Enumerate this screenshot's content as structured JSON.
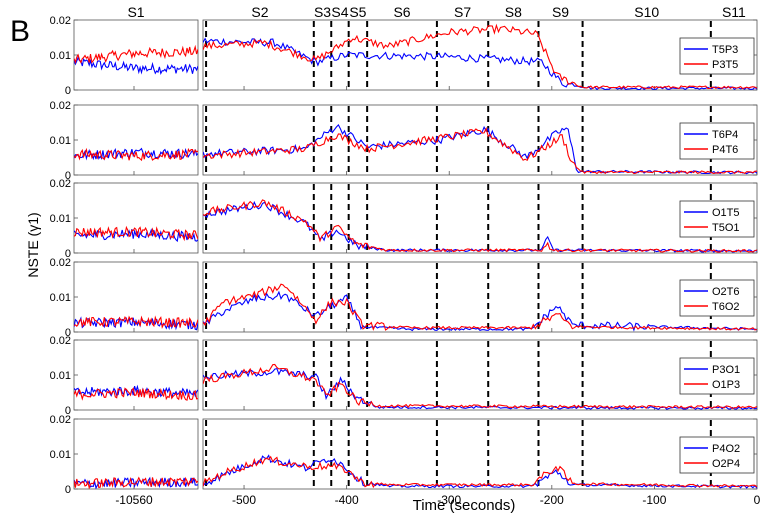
{
  "chart_data": {
    "type": "line",
    "panel_label": "B",
    "ylabel": "NSTE (γ1)",
    "xlabel": "Time (seconds)",
    "segments_top": [
      "S1",
      "S2",
      "S3",
      "S4",
      "S5",
      "S6",
      "S7",
      "S8",
      "S9",
      "S10",
      "S11"
    ],
    "left_axis": {
      "xlim": [
        -10605,
        -10512
      ],
      "xticks": [
        -10560
      ],
      "xtick_labels": [
        "-10560"
      ]
    },
    "right_axis": {
      "xlim": [
        -540,
        0
      ],
      "xticks": [
        -500,
        -400,
        -300,
        -200,
        -100,
        0
      ],
      "xtick_labels": [
        "-500",
        "-400",
        "-300",
        "-200",
        "-100",
        "0"
      ]
    },
    "ylim": [
      0,
      0.02
    ],
    "yticks": [
      0,
      0.01,
      0.02
    ],
    "ytick_labels": [
      "0",
      "0.01",
      "0.02"
    ],
    "phase_boundaries": [
      -537,
      -432,
      -415,
      -398,
      -380,
      -312,
      -262,
      -213,
      -170,
      -45
    ],
    "colors": {
      "series1": "#0000ff",
      "series2": "#ff0000"
    },
    "panels": [
      {
        "legend": [
          "T5P3",
          "P3T5"
        ],
        "s1_a": [
          0.008,
          0.0062,
          0.006
        ],
        "s1_b": [
          0.0085,
          0.0105,
          0.011
        ],
        "a_keys": [
          [
            -540,
            0.014
          ],
          [
            -470,
            0.0135
          ],
          [
            -430,
            0.008
          ],
          [
            -400,
            0.01
          ],
          [
            -300,
            0.0095
          ],
          [
            -210,
            0.008
          ],
          [
            -190,
            0.002
          ],
          [
            -160,
            0.0005
          ],
          [
            0,
            0.0005
          ]
        ],
        "b_keys": [
          [
            -540,
            0.0125
          ],
          [
            -480,
            0.0135
          ],
          [
            -430,
            0.0085
          ],
          [
            -410,
            0.012
          ],
          [
            -395,
            0.015
          ],
          [
            -360,
            0.0125
          ],
          [
            -330,
            0.0145
          ],
          [
            -300,
            0.0165
          ],
          [
            -250,
            0.0175
          ],
          [
            -215,
            0.016
          ],
          [
            -195,
            0.004
          ],
          [
            -170,
            0.0008
          ],
          [
            0,
            0.0008
          ]
        ]
      },
      {
        "legend": [
          "T6P4",
          "P4T6"
        ],
        "s1_a": [
          0.0055,
          0.0065,
          0.006
        ],
        "s1_b": [
          0.006,
          0.0055,
          0.006
        ],
        "a_keys": [
          [
            -540,
            0.006
          ],
          [
            -440,
            0.0075
          ],
          [
            -410,
            0.014
          ],
          [
            -380,
            0.008
          ],
          [
            -310,
            0.01
          ],
          [
            -265,
            0.013
          ],
          [
            -225,
            0.005
          ],
          [
            -195,
            0.012
          ],
          [
            -185,
            0.0135
          ],
          [
            -175,
            0.001
          ],
          [
            0,
            0.0007
          ]
        ],
        "b_keys": [
          [
            -540,
            0.0055
          ],
          [
            -440,
            0.0075
          ],
          [
            -410,
            0.0115
          ],
          [
            -380,
            0.0075
          ],
          [
            -310,
            0.0105
          ],
          [
            -265,
            0.0125
          ],
          [
            -225,
            0.0045
          ],
          [
            -190,
            0.011
          ],
          [
            -180,
            0.0035
          ],
          [
            -170,
            0.0008
          ],
          [
            0,
            0.0008
          ]
        ]
      },
      {
        "legend": [
          "O1T5",
          "T5O1"
        ],
        "s1_a": [
          0.005,
          0.0055,
          0.0045
        ],
        "s1_b": [
          0.006,
          0.006,
          0.005
        ],
        "a_keys": [
          [
            -540,
            0.011
          ],
          [
            -480,
            0.014
          ],
          [
            -440,
            0.0085
          ],
          [
            -425,
            0.0035
          ],
          [
            -410,
            0.0065
          ],
          [
            -390,
            0.002
          ],
          [
            -360,
            0.0008
          ],
          [
            -210,
            0.0008
          ],
          [
            -205,
            0.004
          ],
          [
            -198,
            0.0008
          ],
          [
            0,
            0.0006
          ]
        ],
        "b_keys": [
          [
            -540,
            0.0115
          ],
          [
            -480,
            0.0145
          ],
          [
            -440,
            0.009
          ],
          [
            -425,
            0.004
          ],
          [
            -410,
            0.0075
          ],
          [
            -390,
            0.0025
          ],
          [
            -360,
            0.0008
          ],
          [
            -210,
            0.0008
          ],
          [
            -205,
            0.0025
          ],
          [
            -198,
            0.0008
          ],
          [
            0,
            0.0006
          ]
        ]
      },
      {
        "legend": [
          "O2T6",
          "T6O2"
        ],
        "s1_a": [
          0.0025,
          0.0028,
          0.002
        ],
        "s1_b": [
          0.0028,
          0.003,
          0.0025
        ],
        "a_keys": [
          [
            -540,
            0.002
          ],
          [
            -520,
            0.006
          ],
          [
            -490,
            0.0095
          ],
          [
            -460,
            0.0105
          ],
          [
            -430,
            0.0045
          ],
          [
            -415,
            0.0075
          ],
          [
            -400,
            0.0095
          ],
          [
            -385,
            0.0015
          ],
          [
            -340,
            0.0008
          ],
          [
            -220,
            0.0008
          ],
          [
            -195,
            0.0075
          ],
          [
            -180,
            0.002
          ],
          [
            0,
            0.0008
          ]
        ],
        "b_keys": [
          [
            -540,
            0.002
          ],
          [
            -520,
            0.0085
          ],
          [
            -490,
            0.0105
          ],
          [
            -460,
            0.0135
          ],
          [
            -430,
            0.0035
          ],
          [
            -415,
            0.0085
          ],
          [
            -400,
            0.0085
          ],
          [
            -385,
            0.002
          ],
          [
            -340,
            0.0012
          ],
          [
            -220,
            0.0012
          ],
          [
            -195,
            0.005
          ],
          [
            -180,
            0.0015
          ],
          [
            0,
            0.0008
          ]
        ]
      },
      {
        "legend": [
          "P3O1",
          "O1P3"
        ],
        "s1_a": [
          0.005,
          0.0055,
          0.0045
        ],
        "s1_b": [
          0.0045,
          0.005,
          0.004
        ],
        "a_keys": [
          [
            -540,
            0.0095
          ],
          [
            -470,
            0.011
          ],
          [
            -430,
            0.0095
          ],
          [
            -420,
            0.004
          ],
          [
            -405,
            0.0085
          ],
          [
            -390,
            0.0035
          ],
          [
            -370,
            0.0008
          ],
          [
            0,
            0.0005
          ]
        ],
        "b_keys": [
          [
            -540,
            0.0085
          ],
          [
            -470,
            0.012
          ],
          [
            -430,
            0.0085
          ],
          [
            -420,
            0.004
          ],
          [
            -405,
            0.0075
          ],
          [
            -390,
            0.0025
          ],
          [
            -370,
            0.0012
          ],
          [
            0,
            0.0008
          ]
        ]
      },
      {
        "legend": [
          "P4O2",
          "O2P4"
        ],
        "s1_a": [
          0.0015,
          0.0018,
          0.002
        ],
        "s1_b": [
          0.0015,
          0.002,
          0.0022
        ],
        "a_keys": [
          [
            -540,
            0.0015
          ],
          [
            -520,
            0.004
          ],
          [
            -480,
            0.009
          ],
          [
            -440,
            0.006
          ],
          [
            -415,
            0.009
          ],
          [
            -400,
            0.006
          ],
          [
            -385,
            0.002
          ],
          [
            -360,
            0.0008
          ],
          [
            -220,
            0.0008
          ],
          [
            -195,
            0.005
          ],
          [
            -180,
            0.0012
          ],
          [
            0,
            0.0006
          ]
        ],
        "b_keys": [
          [
            -540,
            0.0015
          ],
          [
            -520,
            0.0045
          ],
          [
            -480,
            0.0085
          ],
          [
            -440,
            0.0065
          ],
          [
            -415,
            0.0065
          ],
          [
            -400,
            0.0055
          ],
          [
            -385,
            0.0018
          ],
          [
            -360,
            0.0012
          ],
          [
            -220,
            0.0012
          ],
          [
            -195,
            0.0065
          ],
          [
            -180,
            0.0015
          ],
          [
            0,
            0.0008
          ]
        ]
      }
    ]
  }
}
